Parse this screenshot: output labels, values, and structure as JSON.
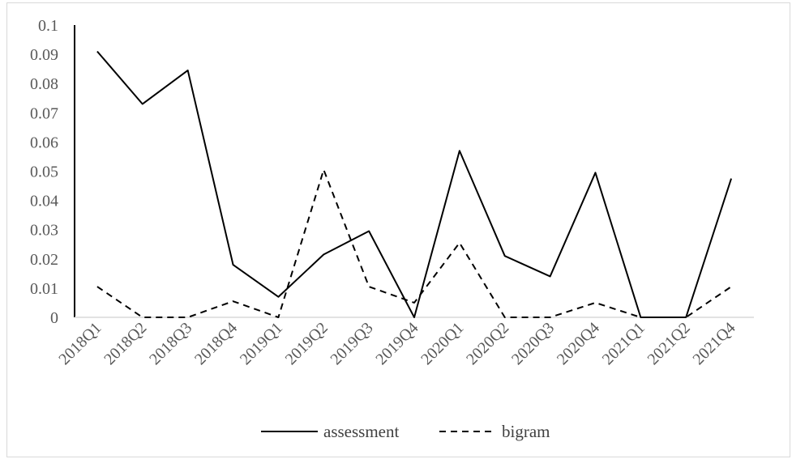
{
  "chart_data": {
    "type": "line",
    "title": "",
    "xlabel": "",
    "ylabel": "",
    "categories": [
      "2018Q1",
      "2018Q2",
      "2018Q3",
      "2018Q4",
      "2019Q1",
      "2019Q2",
      "2019Q3",
      "2019Q4",
      "2020Q1",
      "2020Q2",
      "2020Q3",
      "2020Q4",
      "2021Q1",
      "2021Q2",
      "2021Q4"
    ],
    "ylim": [
      0,
      0.1
    ],
    "yticks": [
      "0",
      "0.01",
      "0.02",
      "0.03",
      "0.04",
      "0.05",
      "0.06",
      "0.07",
      "0.08",
      "0.09",
      "0.1"
    ],
    "grid": false,
    "legend_position": "bottom",
    "series": [
      {
        "name": "assessment",
        "style": "solid",
        "color": "#000000",
        "values": [
          0.091,
          0.073,
          0.0845,
          0.018,
          0.007,
          0.0215,
          0.0295,
          0.0,
          0.057,
          0.021,
          0.014,
          0.0495,
          0.0,
          0.0,
          0.0475
        ]
      },
      {
        "name": "bigram",
        "style": "dashed",
        "color": "#000000",
        "values": [
          0.0105,
          0.0,
          0.0,
          0.0055,
          0.0,
          0.0505,
          0.0105,
          0.005,
          0.0255,
          0.0,
          0.0,
          0.005,
          0.0,
          0.0,
          0.0105
        ]
      }
    ]
  }
}
